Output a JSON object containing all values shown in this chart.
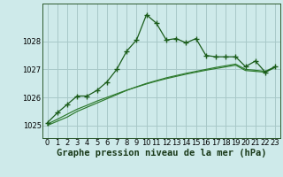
{
  "xlabel": "Graphe pression niveau de la mer (hPa)",
  "bg_color": "#ceeaea",
  "grid_color": "#a8c8c8",
  "line_color_main": "#1a5c1a",
  "line_color_avg1": "#2d7a2d",
  "line_color_avg2": "#2d7a2d",
  "ylim": [
    1024.55,
    1029.35
  ],
  "xlim": [
    -0.5,
    23.5
  ],
  "yticks": [
    1025,
    1026,
    1027,
    1028
  ],
  "xticks": [
    0,
    1,
    2,
    3,
    4,
    5,
    6,
    7,
    8,
    9,
    10,
    11,
    12,
    13,
    14,
    15,
    16,
    17,
    18,
    19,
    20,
    21,
    22,
    23
  ],
  "series_main": {
    "x": [
      0,
      1,
      2,
      3,
      4,
      5,
      6,
      7,
      8,
      9,
      10,
      11,
      12,
      13,
      14,
      15,
      16,
      17,
      18,
      19,
      20,
      21,
      22,
      23
    ],
    "y": [
      1025.1,
      1025.45,
      1025.75,
      1026.05,
      1026.05,
      1026.25,
      1026.55,
      1027.0,
      1027.65,
      1028.05,
      1028.95,
      1028.65,
      1028.05,
      1028.1,
      1027.95,
      1028.1,
      1027.5,
      1027.45,
      1027.45,
      1027.45,
      1027.1,
      1027.3,
      1026.9,
      1027.1
    ]
  },
  "series_avg1": {
    "x": [
      0,
      1,
      2,
      3,
      4,
      5,
      6,
      7,
      8,
      9,
      10,
      11,
      12,
      13,
      14,
      15,
      16,
      17,
      18,
      19,
      20,
      21,
      22,
      23
    ],
    "y": [
      1025.0,
      1025.15,
      1025.3,
      1025.5,
      1025.65,
      1025.8,
      1025.95,
      1026.1,
      1026.25,
      1026.38,
      1026.5,
      1026.6,
      1026.7,
      1026.78,
      1026.86,
      1026.93,
      1027.0,
      1027.07,
      1027.13,
      1027.19,
      1027.0,
      1026.97,
      1026.93,
      1027.1
    ]
  },
  "series_avg2": {
    "x": [
      0,
      1,
      2,
      3,
      4,
      5,
      6,
      7,
      8,
      9,
      10,
      11,
      12,
      13,
      14,
      15,
      16,
      17,
      18,
      19,
      20,
      21,
      22,
      23
    ],
    "y": [
      1025.05,
      1025.22,
      1025.4,
      1025.58,
      1025.72,
      1025.87,
      1026.0,
      1026.13,
      1026.26,
      1026.37,
      1026.48,
      1026.58,
      1026.67,
      1026.75,
      1026.83,
      1026.9,
      1026.97,
      1027.03,
      1027.09,
      1027.15,
      1026.96,
      1026.93,
      1026.9,
      1027.07
    ]
  },
  "xlabel_fontsize": 7.5,
  "tick_fontsize": 6
}
